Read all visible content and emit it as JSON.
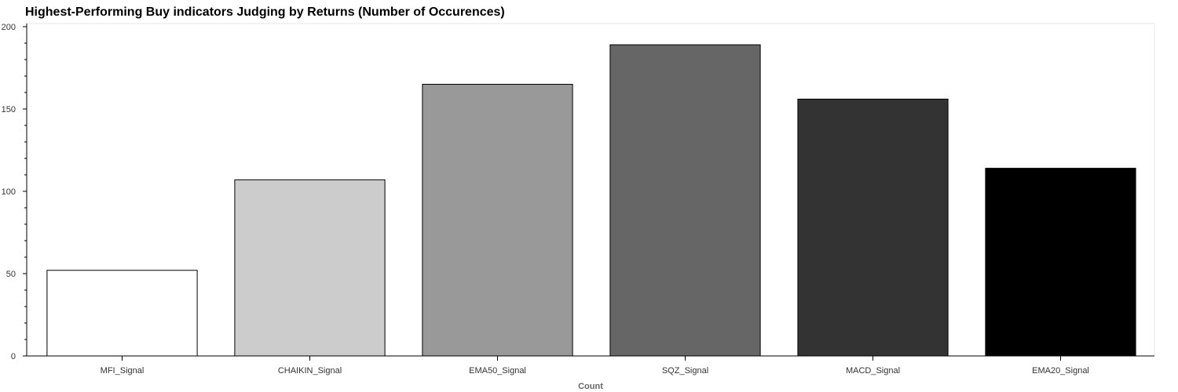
{
  "chart_data": {
    "type": "bar",
    "title": "Highest-Performing Buy indicators Judging by Returns (Number of Occurences)",
    "xlabel": "Count",
    "ylabel": "",
    "categories": [
      "MFI_Signal",
      "CHAIKIN_Signal",
      "EMA50_Signal",
      "SQZ_Signal",
      "MACD_Signal",
      "EMA20_Signal"
    ],
    "values": [
      52,
      107,
      165,
      189,
      156,
      114
    ],
    "colors": [
      "#ffffff",
      "#cccccc",
      "#999999",
      "#666666",
      "#333333",
      "#000000"
    ],
    "bar_outline_color": "#000000",
    "ylim": [
      0,
      200
    ],
    "yticks": [
      0,
      50,
      100,
      150,
      200
    ],
    "grid": false,
    "legend": "none"
  }
}
